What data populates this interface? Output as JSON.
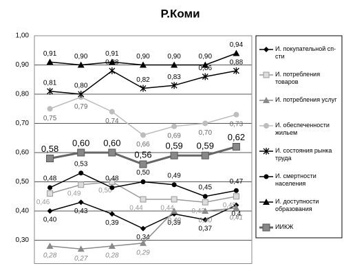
{
  "chart_data": {
    "type": "line",
    "title": "Р.Коми",
    "categories": [
      null,
      null,
      null,
      null,
      null,
      null,
      null
    ],
    "ylim": [
      0.22,
      1.0
    ],
    "yticks": [
      {
        "value": 0.3,
        "label": "0,30"
      },
      {
        "value": 0.4,
        "label": "0,40"
      },
      {
        "value": 0.5,
        "label": "0,50"
      },
      {
        "value": 0.6,
        "label": "0,60"
      },
      {
        "value": 0.7,
        "label": "0,70"
      },
      {
        "value": 0.8,
        "label": "0,80"
      },
      {
        "value": 0.9,
        "label": "0,90"
      },
      {
        "value": 1.0,
        "label": "1,00"
      }
    ],
    "grid": true,
    "series": [
      {
        "name": "И. покупательной сп-сти",
        "color": "#000000",
        "values": [
          0.4,
          0.43,
          0.39,
          0.34,
          0.39,
          0.37,
          0.42
        ],
        "value_labels": [
          "0,40",
          "0,43",
          "0,39",
          "0,34",
          "0,39",
          "0,37",
          "0,4"
        ]
      },
      {
        "name": "И. потребления товаров",
        "color": "#9a9a9a",
        "values": [
          0.46,
          0.49,
          0.5,
          0.44,
          0.44,
          0.43,
          0.45
        ],
        "value_labels": [
          "0,46",
          "0,49",
          "0,50",
          "0,44",
          "0,44",
          "0,43",
          "0,45"
        ]
      },
      {
        "name": "И. потребления услуг",
        "color": "#8a8a8a",
        "values": [
          0.28,
          0.27,
          0.28,
          0.29,
          0.4,
          0.4,
          0.41
        ],
        "value_labels": [
          "0,28",
          "0,27",
          "0,28",
          "0,29",
          "0,40",
          "0,40",
          "0,41"
        ]
      },
      {
        "name": "И. обеспеченности жильем",
        "color": "#bdbdbd",
        "values": [
          0.75,
          0.79,
          0.74,
          0.66,
          0.69,
          0.7,
          0.73
        ],
        "value_labels": [
          "0,75",
          "0,79",
          "0,74",
          "0,66",
          "0,69",
          "0,70",
          "0,73"
        ]
      },
      {
        "name": "И. состояния рынка труда",
        "color": "#000000",
        "values": [
          0.81,
          0.8,
          0.88,
          0.82,
          0.83,
          0.86,
          0.88
        ],
        "value_labels": [
          "0,81",
          "0,80",
          "0,88",
          "0,82",
          "0,83",
          "0,86",
          "0,88"
        ]
      },
      {
        "name": "И. смертности населения",
        "color": "#000000",
        "values": [
          0.48,
          0.53,
          0.48,
          0.5,
          0.49,
          0.45,
          0.47
        ],
        "value_labels": [
          "0,48",
          "0,53",
          "0,48",
          "0,50",
          "0,49",
          "0,45",
          "0,47"
        ]
      },
      {
        "name": "И. доступности образования",
        "color": "#000000",
        "values": [
          0.91,
          0.9,
          0.91,
          0.9,
          0.9,
          0.9,
          0.94
        ],
        "value_labels": [
          "0,91",
          "0,90",
          "0,91",
          "0,90",
          "0,90",
          "0,90",
          "0,94"
        ]
      },
      {
        "name": "ИИКЖ",
        "color": "#666666",
        "values": [
          0.58,
          0.6,
          0.6,
          0.56,
          0.59,
          0.59,
          0.62
        ],
        "value_labels": [
          "0,58",
          "0,60",
          "0,60",
          "0,56",
          "0,59",
          "0,59",
          "0,62"
        ]
      }
    ]
  }
}
